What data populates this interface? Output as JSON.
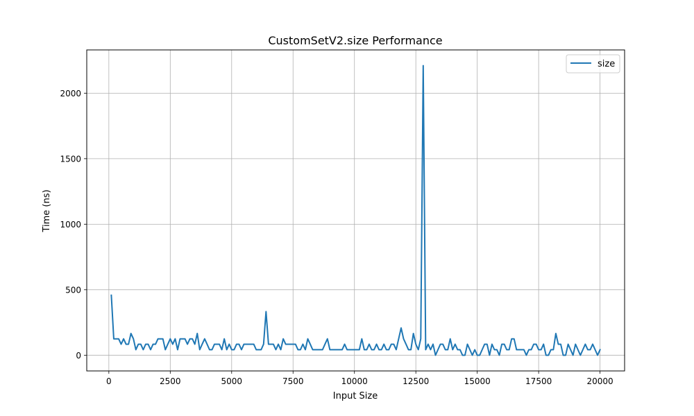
{
  "chart_data": {
    "type": "line",
    "title": "CustomSetV2.size Performance",
    "xlabel": "Input Size",
    "ylabel": "Time (ns)",
    "xlim": [
      -900,
      21000
    ],
    "ylim": [
      -120,
      2330
    ],
    "xticks": [
      0,
      2500,
      5000,
      7500,
      10000,
      12500,
      15000,
      17500,
      20000
    ],
    "yticks": [
      0,
      500,
      1000,
      1500,
      2000
    ],
    "grid": true,
    "legend_position": "top-right",
    "series": [
      {
        "name": "size",
        "color": "#1f77b4",
        "x": [
          100,
          200,
          300,
          400,
          500,
          600,
          700,
          800,
          900,
          1000,
          1100,
          1200,
          1300,
          1400,
          1500,
          1600,
          1700,
          1800,
          1900,
          2000,
          2100,
          2200,
          2300,
          2400,
          2500,
          2600,
          2700,
          2800,
          2900,
          3000,
          3100,
          3200,
          3300,
          3400,
          3500,
          3600,
          3700,
          3800,
          3900,
          4000,
          4100,
          4200,
          4300,
          4400,
          4500,
          4600,
          4700,
          4800,
          4900,
          5000,
          5100,
          5200,
          5300,
          5400,
          5500,
          5600,
          5700,
          5800,
          5900,
          6000,
          6100,
          6200,
          6300,
          6400,
          6500,
          6600,
          6700,
          6800,
          6900,
          7000,
          7100,
          7200,
          7300,
          7400,
          7500,
          7600,
          7700,
          7800,
          7900,
          8000,
          8100,
          8200,
          8300,
          8400,
          8500,
          8600,
          8700,
          8800,
          8900,
          9000,
          9100,
          9200,
          9300,
          9400,
          9500,
          9600,
          9700,
          9800,
          9900,
          10000,
          10100,
          10200,
          10300,
          10400,
          10500,
          10600,
          10700,
          10800,
          10900,
          11000,
          11100,
          11200,
          11300,
          11400,
          11500,
          11600,
          11700,
          11800,
          11900,
          12000,
          12100,
          12200,
          12300,
          12400,
          12500,
          12600,
          12700,
          12800,
          12900,
          13000,
          13100,
          13200,
          13300,
          13400,
          13500,
          13600,
          13700,
          13800,
          13900,
          14000,
          14100,
          14200,
          14300,
          14400,
          14500,
          14600,
          14700,
          14800,
          14900,
          15000,
          15100,
          15200,
          15300,
          15400,
          15500,
          15600,
          15700,
          15800,
          15900,
          16000,
          16100,
          16200,
          16300,
          16400,
          16500,
          16600,
          16700,
          16800,
          16900,
          17000,
          17100,
          17200,
          17300,
          17400,
          17500,
          17600,
          17700,
          17800,
          17900,
          18000,
          18100,
          18200,
          18300,
          18400,
          18500,
          18600,
          18700,
          18800,
          18900,
          19000,
          19100,
          19200,
          19300,
          19400,
          19500,
          19600,
          19700,
          19800,
          19900,
          20000
        ],
        "y": [
          458,
          125,
          125,
          125,
          84,
          125,
          84,
          84,
          166,
          125,
          42,
          84,
          84,
          42,
          84,
          84,
          42,
          84,
          84,
          125,
          125,
          125,
          42,
          84,
          125,
          84,
          125,
          42,
          125,
          125,
          125,
          84,
          125,
          125,
          84,
          166,
          42,
          84,
          125,
          84,
          42,
          42,
          84,
          84,
          84,
          42,
          125,
          42,
          84,
          42,
          42,
          84,
          84,
          42,
          84,
          84,
          84,
          84,
          84,
          42,
          42,
          42,
          84,
          333,
          84,
          84,
          84,
          42,
          84,
          42,
          125,
          84,
          84,
          84,
          84,
          84,
          42,
          42,
          84,
          42,
          125,
          84,
          42,
          42,
          42,
          42,
          42,
          84,
          125,
          42,
          42,
          42,
          42,
          42,
          42,
          84,
          42,
          42,
          42,
          42,
          42,
          42,
          125,
          42,
          42,
          84,
          42,
          42,
          84,
          42,
          42,
          84,
          42,
          42,
          84,
          84,
          42,
          125,
          208,
          125,
          84,
          42,
          42,
          166,
          84,
          42,
          125,
          2210,
          42,
          84,
          42,
          84,
          0,
          42,
          84,
          84,
          42,
          42,
          125,
          42,
          84,
          42,
          42,
          0,
          0,
          84,
          42,
          0,
          42,
          0,
          0,
          42,
          84,
          84,
          0,
          84,
          42,
          42,
          0,
          84,
          84,
          42,
          42,
          125,
          125,
          42,
          42,
          42,
          42,
          0,
          42,
          42,
          84,
          84,
          42,
          42,
          84,
          0,
          0,
          42,
          42,
          166,
          84,
          84,
          0,
          0,
          84,
          42,
          0,
          84,
          42,
          0,
          42,
          84,
          42,
          42,
          84,
          42,
          0,
          42
        ]
      }
    ]
  }
}
